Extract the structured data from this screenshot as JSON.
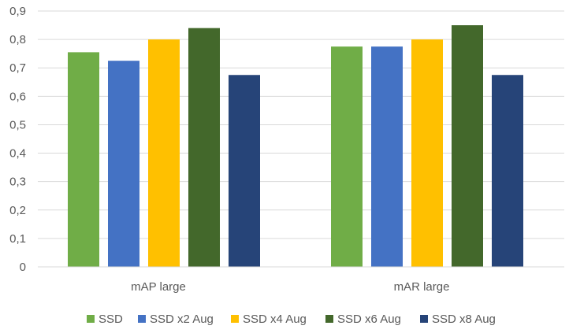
{
  "chart_data": {
    "type": "bar",
    "categories": [
      "mAP large",
      "mAR large"
    ],
    "series": [
      {
        "name": "SSD",
        "color": "#70ad47",
        "values": [
          0.755,
          0.775
        ]
      },
      {
        "name": "SSD x2 Aug",
        "color": "#4472c4",
        "values": [
          0.725,
          0.775
        ]
      },
      {
        "name": "SSD x4 Aug",
        "color": "#ffc000",
        "values": [
          0.8,
          0.8
        ]
      },
      {
        "name": "SSD x6 Aug",
        "color": "#43682b",
        "values": [
          0.84,
          0.85
        ]
      },
      {
        "name": "SSD x8 Aug",
        "color": "#264478",
        "values": [
          0.675,
          0.675
        ]
      }
    ],
    "yticks": [
      "0",
      "0,1",
      "0,2",
      "0,3",
      "0,4",
      "0,5",
      "0,6",
      "0,7",
      "0,8",
      "0,9"
    ],
    "ylim": [
      0,
      0.9
    ],
    "grid": true,
    "legend": "bottom",
    "title": "",
    "xlabel": "",
    "ylabel": ""
  }
}
